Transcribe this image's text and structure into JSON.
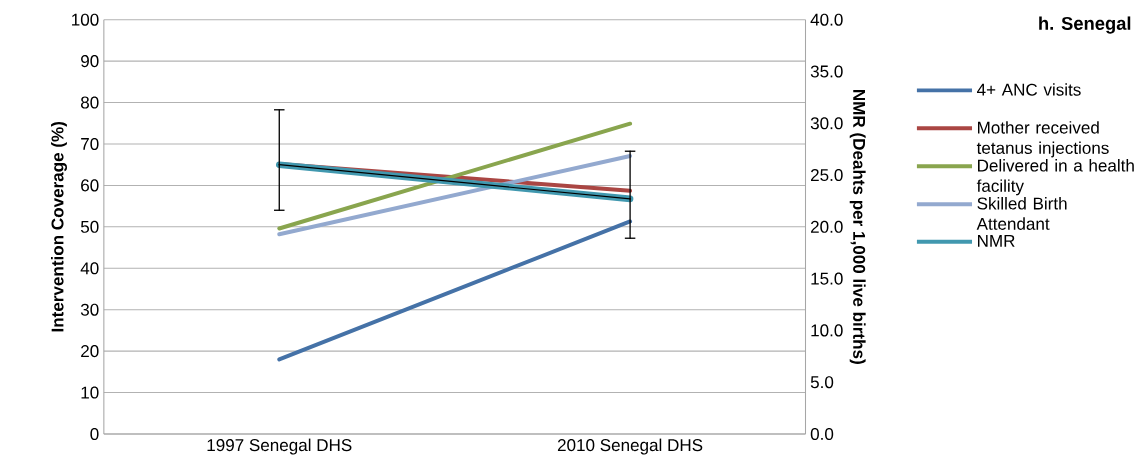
{
  "chart_data": {
    "type": "line",
    "title": "h. Senegal",
    "ylabel": "Intervention Coverage (%)",
    "y2label": "NMR (Deahts per 1,000 live births)",
    "categories": [
      "1997 Senegal DHS",
      "2010 Senegal DHS"
    ],
    "series": [
      {
        "name": "4+ ANC visits",
        "color": "#4572a7",
        "values": [
          18.0,
          51.3
        ]
      },
      {
        "name": "Mother received tetanus injections",
        "color": "#aa4643",
        "values": [
          65.2,
          58.7
        ]
      },
      {
        "name": "Delivered in a health facility",
        "color": "#89a54e",
        "values": [
          49.6,
          74.9
        ]
      },
      {
        "name": "Skilled Birth Attendant",
        "color": "#93a9cf",
        "values": [
          48.2,
          67.1
        ]
      },
      {
        "name": "NMR",
        "color": "#4198af",
        "axis": "y2",
        "values": [
          26.0,
          22.7
        ],
        "errors": [
          [
            21.6,
            31.3
          ],
          [
            18.9,
            27.3
          ]
        ]
      }
    ],
    "ylim": [
      0,
      100
    ],
    "yticks": [
      0,
      10,
      20,
      30,
      40,
      50,
      60,
      70,
      80,
      90,
      100
    ],
    "y2lim": [
      0,
      40
    ],
    "y2ticks": [
      {
        "value": 0,
        "label": "0.0"
      },
      {
        "value": 5,
        "label": "5.0"
      },
      {
        "value": 10,
        "label": "10.0"
      },
      {
        "value": 15,
        "label": "15.0"
      },
      {
        "value": 20,
        "label": "20.0"
      },
      {
        "value": 25,
        "label": "25.0"
      },
      {
        "value": 30,
        "label": "30.0"
      },
      {
        "value": 35,
        "label": "35.0"
      },
      {
        "value": 40,
        "label": "40.0"
      }
    ],
    "grid": "y",
    "legend": "right"
  }
}
